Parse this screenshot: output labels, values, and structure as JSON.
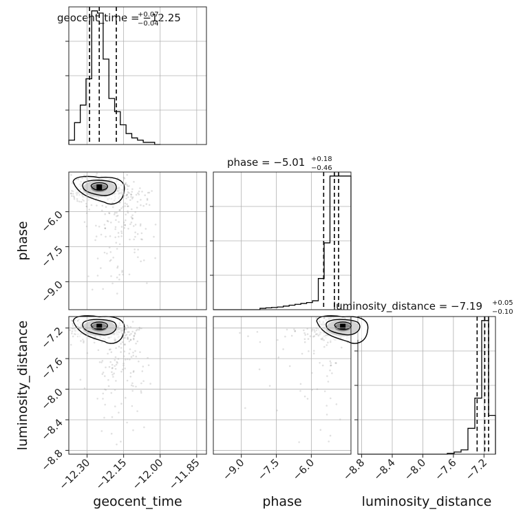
{
  "chart_data": {
    "type": "corner",
    "parameters": [
      "geocent_time",
      "phase",
      "luminosity_distance"
    ],
    "titles": {
      "geocent_time": {
        "prefix": "geocent_time = ",
        "median": "−12.25",
        "plus": "+0.07",
        "minus": "−0.04"
      },
      "phase": {
        "prefix": "phase = ",
        "median": "−5.01",
        "plus": "+0.18",
        "minus": "−0.46"
      },
      "luminosity_distance": {
        "prefix": "luminosity_distance = ",
        "median": "−7.19",
        "plus": "+0.05",
        "minus": "−0.10"
      }
    },
    "ranges": {
      "geocent_time": [
        -12.375,
        -11.81
      ],
      "phase": [
        -10.2,
        -4.3
      ],
      "luminosity_distance": [
        -8.85,
        -7.05
      ]
    },
    "ticks": {
      "geocent_time": {
        "values": [
          -12.3,
          -12.15,
          -12.0,
          -11.85
        ],
        "labels": [
          "−12.30",
          "−12.15",
          "−12.00",
          "−11.85"
        ]
      },
      "phase": {
        "values": [
          -9.0,
          -7.5,
          -6.0
        ],
        "labels": [
          "−9.0",
          "−7.5",
          "−6.0"
        ]
      },
      "luminosity_distance": {
        "values": [
          -8.8,
          -8.4,
          -8.0,
          -7.6,
          -7.2
        ],
        "labels": [
          "−8.8",
          "−8.4",
          "−8.0",
          "−7.6",
          "−7.2"
        ]
      }
    },
    "quantiles": {
      "geocent_time": [
        -12.29,
        -12.25,
        -12.18
      ],
      "phase": [
        -5.47,
        -5.01,
        -4.83
      ],
      "luminosity_distance": [
        -7.29,
        -7.19,
        -7.14
      ]
    },
    "histograms": {
      "geocent_time": {
        "edges": [
          -12.375,
          -12.3515,
          -12.328,
          -12.3045,
          -12.281,
          -12.2575,
          -12.234,
          -12.2105,
          -12.187,
          -12.1635,
          -12.14,
          -12.1165,
          -12.093,
          -12.0695,
          -12.046,
          -12.0225,
          -11.999
        ],
        "counts": [
          2,
          10,
          18,
          30,
          61,
          60,
          39,
          21,
          15,
          9,
          5,
          3,
          2,
          1,
          1,
          0
        ]
      },
      "phase": {
        "edges": [
          -10.2,
          -9.95,
          -9.7,
          -9.45,
          -9.2,
          -8.95,
          -8.7,
          -8.45,
          -8.2,
          -7.95,
          -7.7,
          -7.45,
          -7.2,
          -6.95,
          -6.7,
          -6.45,
          -6.2,
          -5.95,
          -5.7,
          -5.45,
          -5.2,
          -4.95,
          -4.7,
          -4.45,
          -4.3
        ],
        "counts": [
          0,
          0,
          0,
          0,
          0,
          0,
          0,
          0,
          0.3,
          0.4,
          0.5,
          0.6,
          0.8,
          1,
          1.2,
          1.4,
          1.6,
          2,
          7,
          15,
          30,
          30,
          30,
          30
        ]
      },
      "luminosity_distance": {
        "edges": [
          -8.85,
          -8.76,
          -8.67,
          -8.58,
          -8.49,
          -8.4,
          -8.31,
          -8.22,
          -8.13,
          -8.04,
          -7.95,
          -7.86,
          -7.77,
          -7.68,
          -7.59,
          -7.5,
          -7.41,
          -7.32,
          -7.23,
          -7.14,
          -7.05
        ],
        "counts": [
          0,
          0,
          0,
          0,
          0,
          0,
          0,
          0,
          0,
          0,
          0,
          0,
          0,
          0.2,
          0.5,
          1,
          6,
          13,
          31,
          9
        ]
      }
    },
    "contour_centers": {
      "phase_vs_geocent_time": [
        -12.25,
        -4.95
      ],
      "luminosity_distance_vs_geocent_time": [
        -12.25,
        -7.18
      ],
      "luminosity_distance_vs_phase": [
        -4.65,
        -7.18
      ]
    },
    "grid": true
  }
}
